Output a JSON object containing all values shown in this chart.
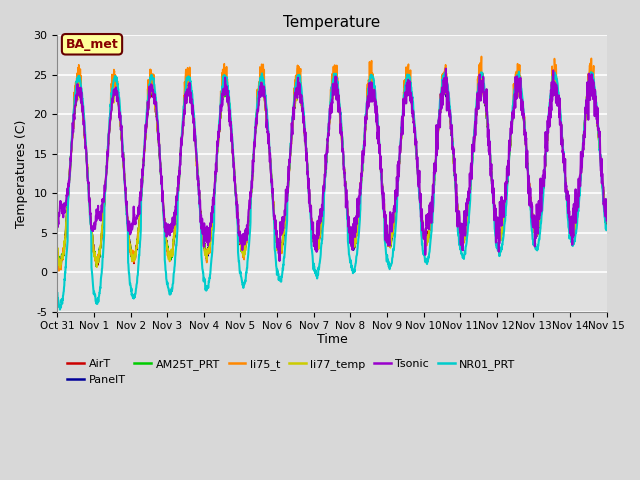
{
  "title": "Temperature",
  "ylabel": "Temperatures (C)",
  "xlabel": "Time",
  "annotation": "BA_met",
  "ylim": [
    -5,
    30
  ],
  "xtick_labels": [
    "Oct 31",
    "Nov 1",
    "Nov 2",
    "Nov 3",
    "Nov 4",
    "Nov 5",
    "Nov 6",
    "Nov 7",
    "Nov 8",
    "Nov 9",
    "Nov 10",
    "Nov 11",
    "Nov 12",
    "Nov 13",
    "Nov 14",
    "Nov 15"
  ],
  "ytick_labels": [
    -5,
    0,
    5,
    10,
    15,
    20,
    25,
    30
  ],
  "series": [
    {
      "name": "AirT",
      "color": "#cc0000",
      "lw": 1.2
    },
    {
      "name": "PanelT",
      "color": "#000099",
      "lw": 1.2
    },
    {
      "name": "AM25T_PRT",
      "color": "#00cc00",
      "lw": 1.2
    },
    {
      "name": "li75_t",
      "color": "#ff8800",
      "lw": 1.2
    },
    {
      "name": "li77_temp",
      "color": "#cccc00",
      "lw": 1.2
    },
    {
      "name": "Tsonic",
      "color": "#9900cc",
      "lw": 1.5
    },
    {
      "name": "NR01_PRT",
      "color": "#00cccc",
      "lw": 1.5
    }
  ],
  "legend_order": [
    "AirT",
    "PanelT",
    "AM25T_PRT",
    "li75_t",
    "li77_temp",
    "Tsonic",
    "NR01_PRT"
  ],
  "legend_ncol": 6,
  "bg_color": "#e0e0e0",
  "grid_color": "#ffffff",
  "annotation_bg": "#ffff99",
  "annotation_border": "#660000",
  "fig_facecolor": "#d8d8d8"
}
